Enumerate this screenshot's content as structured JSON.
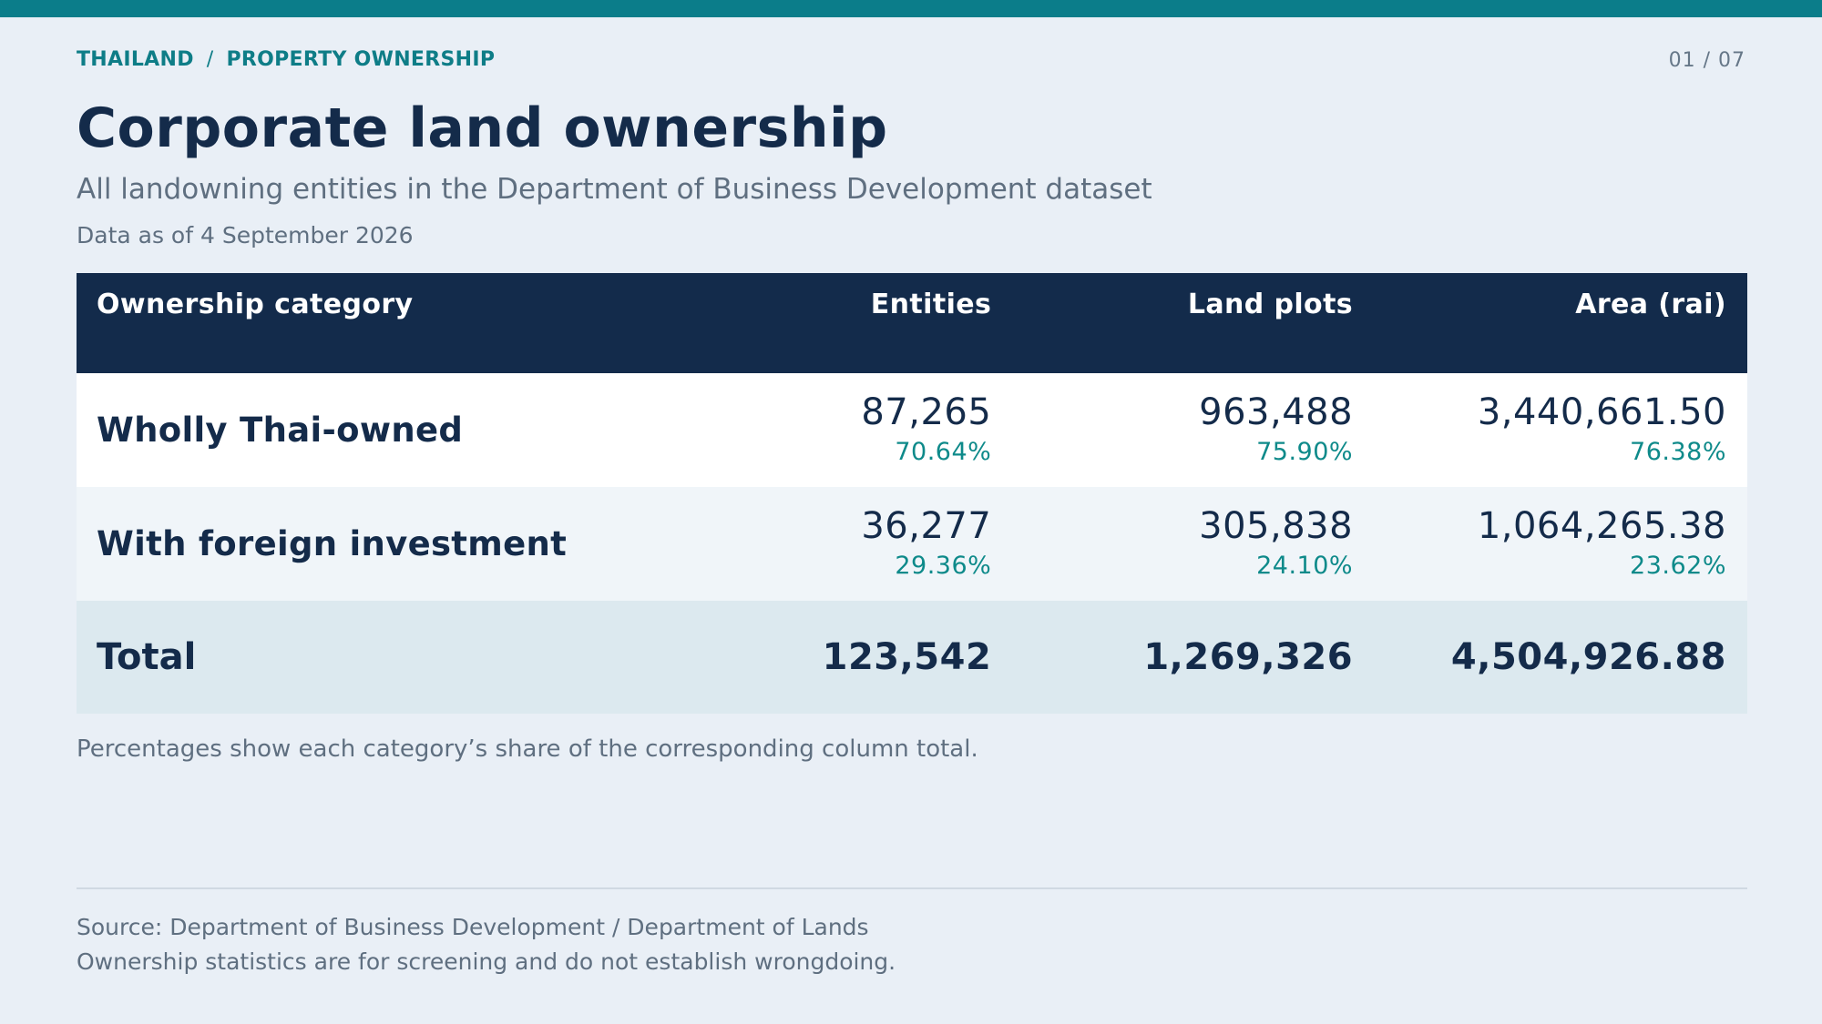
{
  "breadcrumb": {
    "country": "THAILAND",
    "separator": "/",
    "section": "PROPERTY OWNERSHIP"
  },
  "page_number": "01 / 07",
  "title": "Corporate land ownership",
  "subtitle": "All landowning entities in the Department of Business Development dataset",
  "as_of": "Data as of 4 September 2026",
  "table": {
    "headers": [
      "Ownership category",
      "Entities",
      "Land plots",
      "Area (rai)"
    ],
    "rows": [
      {
        "category": "Wholly Thai-owned",
        "entities": "87,265",
        "entities_pct": "70.64%",
        "plots": "963,488",
        "plots_pct": "75.90%",
        "area": "3,440,661.50",
        "area_pct": "76.38%"
      },
      {
        "category": "With foreign investment",
        "entities": "36,277",
        "entities_pct": "29.36%",
        "plots": "305,838",
        "plots_pct": "24.10%",
        "area": "1,064,265.38",
        "area_pct": "23.62%"
      }
    ],
    "total": {
      "label": "Total",
      "entities": "123,542",
      "plots": "1,269,326",
      "area": "4,504,926.88"
    }
  },
  "footnote": "Percentages show each category’s share of the corresponding column total.",
  "source_line1": "Source: Department of Business Development / Department of Lands",
  "source_line2": "Ownership statistics are for screening and do not establish wrongdoing.",
  "colors": {
    "accent": "#0b7d8a",
    "header_bg": "#132b4b",
    "total_bg": "#dce9ef",
    "page_bg": "#e9eff6"
  }
}
